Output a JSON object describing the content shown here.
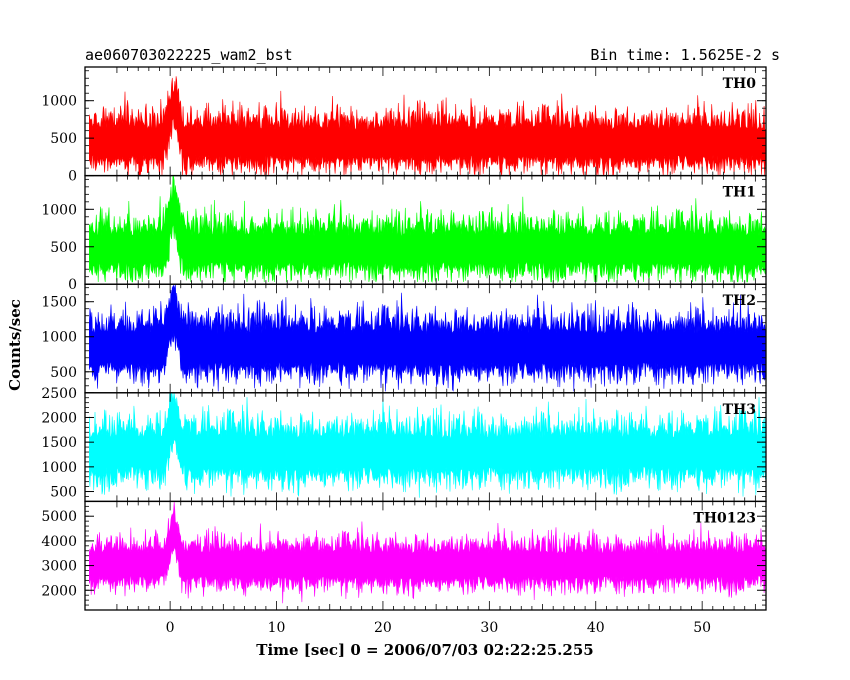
{
  "chart_data": {
    "type": "line",
    "title": "ae060703022225_wam2_bst",
    "bin_time": "Bin time: 1.5625E-2 s",
    "xlabel": "Time [sec] 0 = 2006/07/03 02:22:25.255",
    "ylabel": "Counts/sec",
    "xlim": [
      -8,
      56
    ],
    "x_ticks": [
      0,
      10,
      20,
      30,
      40,
      50
    ],
    "x_tick_labels": [
      "0",
      "10",
      "20",
      "30",
      "40",
      "50"
    ],
    "panels": [
      {
        "name": "TH0",
        "color": "#ff0000",
        "ylim": [
          0,
          1450
        ],
        "y_ticks": [
          0,
          500,
          1000
        ],
        "y_tick_labels": [
          "0",
          "500",
          "1000"
        ],
        "mean": 450,
        "spread": 290,
        "burst_peak": 1350,
        "floor": 0
      },
      {
        "name": "TH1",
        "color": "#00ff00",
        "ylim": [
          0,
          1450
        ],
        "y_ticks": [
          0,
          500,
          1000
        ],
        "y_tick_labels": [
          "0",
          "500",
          "1000"
        ],
        "mean": 480,
        "spread": 300,
        "burst_peak": 1400,
        "floor": 30
      },
      {
        "name": "TH2",
        "color": "#0000ff",
        "ylim": [
          200,
          1750
        ],
        "y_ticks": [
          500,
          1000,
          1500
        ],
        "y_tick_labels": [
          "500",
          "1000",
          "1500"
        ],
        "mean": 850,
        "spread": 350,
        "burst_peak": 1750,
        "floor": 220
      },
      {
        "name": "TH3",
        "color": "#00ffff",
        "ylim": [
          300,
          2500
        ],
        "y_ticks": [
          500,
          1000,
          1500,
          2000,
          2500
        ],
        "y_tick_labels": [
          "500",
          "1000",
          "1500",
          "2000",
          "2500"
        ],
        "mean": 1300,
        "spread": 500,
        "burst_peak": 2450,
        "floor": 330
      },
      {
        "name": "TH0123",
        "color": "#ff00ff",
        "ylim": [
          1200,
          5600
        ],
        "y_ticks": [
          2000,
          3000,
          4000,
          5000
        ],
        "y_tick_labels": [
          "2000",
          "3000",
          "4000",
          "5000"
        ],
        "mean": 3050,
        "spread": 780,
        "burst_peak": 5350,
        "floor": 1300
      }
    ]
  }
}
